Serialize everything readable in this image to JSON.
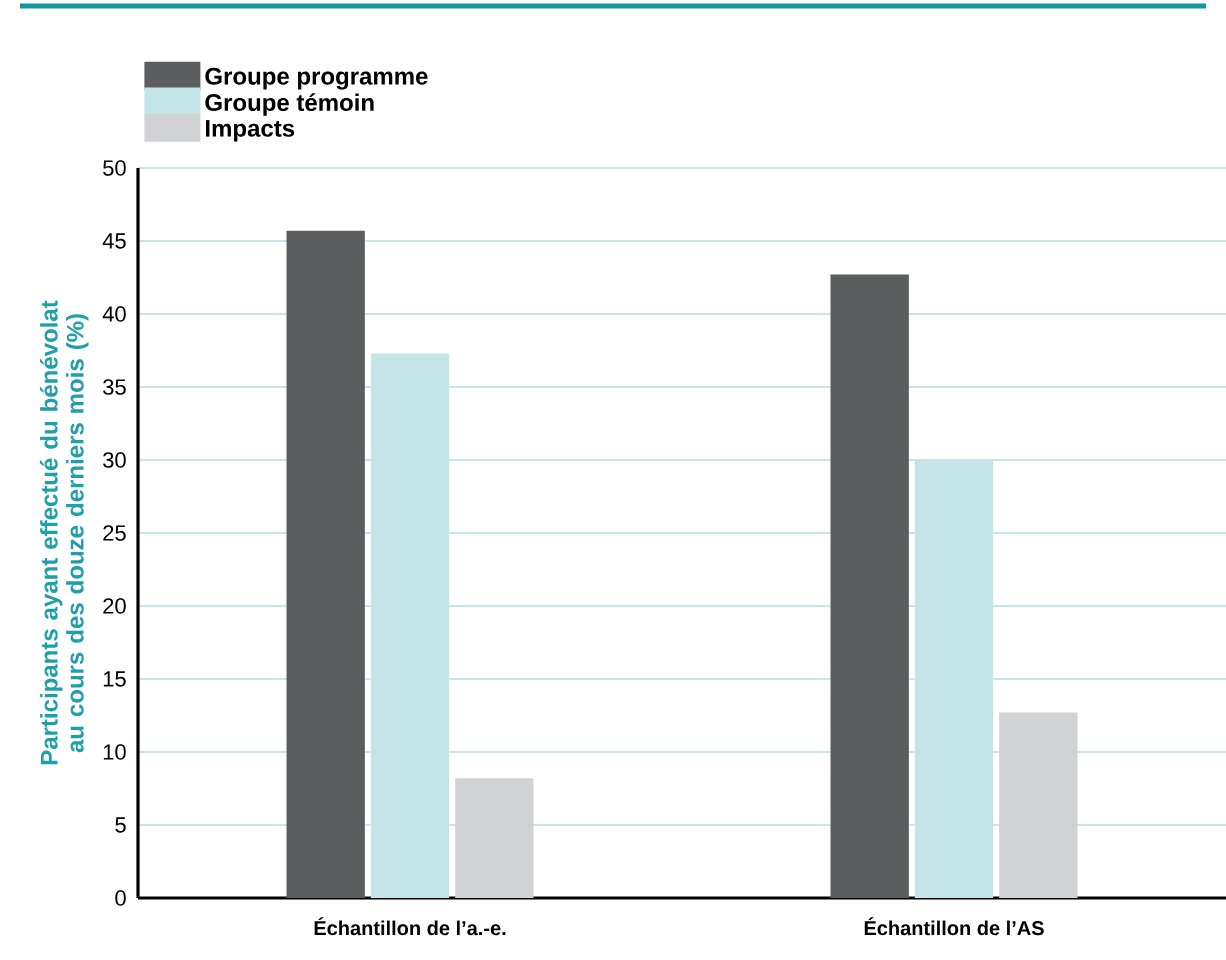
{
  "chart_data": {
    "type": "bar",
    "ylabel": "Participants ayant effectué du bénévolat au cours des douze derniers mois (%)",
    "categories": [
      "Échantillon de l’a.-e.",
      "Échantillon de l’AS"
    ],
    "series": [
      {
        "name": "Groupe programme",
        "color": "#5c5d5f",
        "values": [
          45.7,
          42.7
        ]
      },
      {
        "name": "Groupe témoin",
        "color": "#c4e5e7",
        "values": [
          37.3,
          30.0
        ]
      },
      {
        "name": "Impacts",
        "color": "#d1d2d4",
        "values": [
          8.2,
          12.7
        ]
      }
    ],
    "ylim": [
      0,
      50
    ],
    "yticks": [
      0,
      5,
      10,
      15,
      20,
      25,
      30,
      35,
      40,
      45,
      50
    ],
    "grid": "y",
    "legend": "top left"
  }
}
